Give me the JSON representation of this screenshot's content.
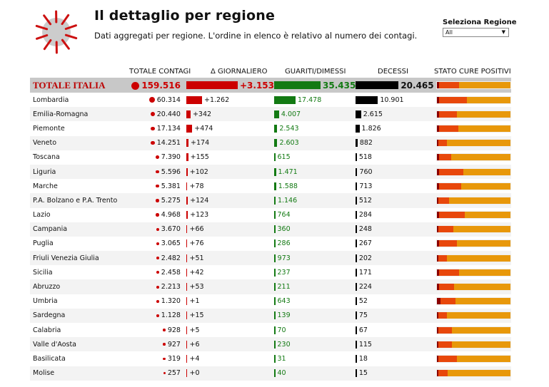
{
  "header": {
    "title": "Il dettaglio per regione",
    "subtitle": "Dati aggregati per regione. L'ordine in elenco è relativo al numero dei contagi."
  },
  "selector": {
    "label": "Seleziona Regione",
    "value": "All"
  },
  "columns": [
    "TOTALE CONTAGI",
    "Δ GIORNALIERO",
    "GUARITI/DIMESSI",
    "DECESSI",
    "STATO CURE POSITIVI"
  ],
  "colors": {
    "contagi": "#cc0000",
    "guariti": "#137a13",
    "decessi": "#000000"
  },
  "total": {
    "name": "TOTALE ITALIA",
    "contagi": "159.516",
    "delta": "+3.153",
    "guariti": "35.435",
    "decessi": "20.465",
    "cure": [
      3,
      27,
      70
    ]
  },
  "regions": [
    {
      "name": "Lombardia",
      "contagi": "60.314",
      "delta": "+1.262",
      "guariti": "17.478",
      "decessi": "10.901",
      "c": 60314,
      "d": 1262,
      "g": 17478,
      "m": 10901,
      "cure": [
        3,
        38,
        59
      ]
    },
    {
      "name": "Emilia-Romagna",
      "contagi": "20.440",
      "delta": "+342",
      "guariti": "4.007",
      "decessi": "2.615",
      "c": 20440,
      "d": 342,
      "g": 4007,
      "m": 2615,
      "cure": [
        3,
        24,
        73
      ]
    },
    {
      "name": "Piemonte",
      "contagi": "17.134",
      "delta": "+474",
      "guariti": "2.543",
      "decessi": "1.826",
      "c": 17134,
      "d": 474,
      "g": 2543,
      "m": 1826,
      "cure": [
        3,
        26,
        71
      ]
    },
    {
      "name": "Veneto",
      "contagi": "14.251",
      "delta": "+174",
      "guariti": "2.603",
      "decessi": "882",
      "c": 14251,
      "d": 174,
      "g": 2603,
      "m": 882,
      "cure": [
        2,
        12,
        86
      ]
    },
    {
      "name": "Toscana",
      "contagi": "7.390",
      "delta": "+155",
      "guariti": "615",
      "decessi": "518",
      "c": 7390,
      "d": 155,
      "g": 615,
      "m": 518,
      "cure": [
        3,
        16,
        81
      ]
    },
    {
      "name": "Liguria",
      "contagi": "5.596",
      "delta": "+102",
      "guariti": "1.471",
      "decessi": "760",
      "c": 5596,
      "d": 102,
      "g": 1471,
      "m": 760,
      "cure": [
        3,
        33,
        64
      ]
    },
    {
      "name": "Marche",
      "contagi": "5.381",
      "delta": "+78",
      "guariti": "1.588",
      "decessi": "713",
      "c": 5381,
      "d": 78,
      "g": 1588,
      "m": 713,
      "cure": [
        3,
        30,
        67
      ]
    },
    {
      "name": "P.A. Bolzano e P.A. Trento",
      "contagi": "5.275",
      "delta": "+124",
      "guariti": "1.146",
      "decessi": "512",
      "c": 5275,
      "d": 124,
      "g": 1146,
      "m": 512,
      "cure": [
        2,
        15,
        83
      ]
    },
    {
      "name": "Lazio",
      "contagi": "4.968",
      "delta": "+123",
      "guariti": "764",
      "decessi": "284",
      "c": 4968,
      "d": 123,
      "g": 764,
      "m": 284,
      "cure": [
        3,
        35,
        62
      ]
    },
    {
      "name": "Campania",
      "contagi": "3.670",
      "delta": "+66",
      "guariti": "360",
      "decessi": "248",
      "c": 3670,
      "d": 66,
      "g": 360,
      "m": 248,
      "cure": [
        2,
        20,
        78
      ]
    },
    {
      "name": "Puglia",
      "contagi": "3.065",
      "delta": "+76",
      "guariti": "286",
      "decessi": "267",
      "c": 3065,
      "d": 76,
      "g": 286,
      "m": 267,
      "cure": [
        3,
        24,
        73
      ]
    },
    {
      "name": "Friuli Venezia Giulia",
      "contagi": "2.482",
      "delta": "+51",
      "guariti": "973",
      "decessi": "202",
      "c": 2482,
      "d": 51,
      "g": 973,
      "m": 202,
      "cure": [
        2,
        12,
        86
      ]
    },
    {
      "name": "Sicilia",
      "contagi": "2.458",
      "delta": "+42",
      "guariti": "237",
      "decessi": "171",
      "c": 2458,
      "d": 42,
      "g": 237,
      "m": 171,
      "cure": [
        3,
        27,
        70
      ]
    },
    {
      "name": "Abruzzo",
      "contagi": "2.213",
      "delta": "+53",
      "guariti": "211",
      "decessi": "224",
      "c": 2213,
      "d": 53,
      "g": 211,
      "m": 224,
      "cure": [
        3,
        20,
        77
      ]
    },
    {
      "name": "Umbria",
      "contagi": "1.320",
      "delta": "+1",
      "guariti": "643",
      "decessi": "52",
      "c": 1320,
      "d": 1,
      "g": 643,
      "m": 52,
      "cure": [
        5,
        20,
        75
      ]
    },
    {
      "name": "Sardegna",
      "contagi": "1.128",
      "delta": "+15",
      "guariti": "139",
      "decessi": "75",
      "c": 1128,
      "d": 15,
      "g": 139,
      "m": 75,
      "cure": [
        2,
        12,
        86
      ]
    },
    {
      "name": "Calabria",
      "contagi": "928",
      "delta": "+5",
      "guariti": "70",
      "decessi": "67",
      "c": 928,
      "d": 5,
      "g": 70,
      "m": 67,
      "cure": [
        2,
        18,
        80
      ]
    },
    {
      "name": "Valle d'Aosta",
      "contagi": "927",
      "delta": "+6",
      "guariti": "230",
      "decessi": "115",
      "c": 927,
      "d": 6,
      "g": 230,
      "m": 115,
      "cure": [
        2,
        18,
        80
      ]
    },
    {
      "name": "Basilicata",
      "contagi": "319",
      "delta": "+4",
      "guariti": "31",
      "decessi": "18",
      "c": 319,
      "d": 4,
      "g": 31,
      "m": 18,
      "cure": [
        2,
        25,
        73
      ]
    },
    {
      "name": "Molise",
      "contagi": "257",
      "delta": "+0",
      "guariti": "40",
      "decessi": "15",
      "c": 257,
      "d": 0,
      "g": 40,
      "m": 15,
      "cure": [
        2,
        13,
        85
      ]
    }
  ]
}
